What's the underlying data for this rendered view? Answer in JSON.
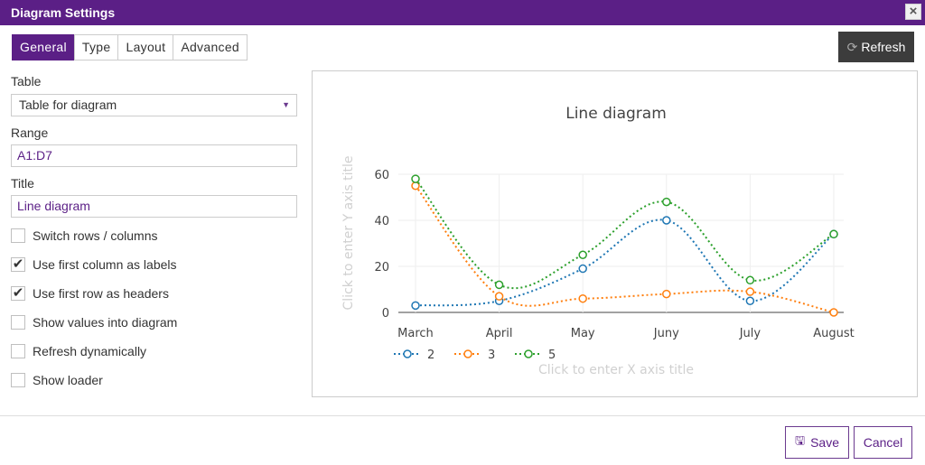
{
  "window": {
    "title": "Diagram Settings",
    "close_icon": "close-icon"
  },
  "tabs": [
    {
      "label": "General",
      "active": true
    },
    {
      "label": "Type",
      "active": false
    },
    {
      "label": "Layout",
      "active": false
    },
    {
      "label": "Advanced",
      "active": false
    }
  ],
  "toolbar": {
    "refresh_label": "Refresh",
    "refresh_icon": "refresh-icon"
  },
  "form": {
    "table_label": "Table",
    "table_value": "Table for diagram",
    "range_label": "Range",
    "range_value": "A1:D7",
    "title_label": "Title",
    "title_value": "Line diagram",
    "checkboxes": [
      {
        "label": "Switch rows / columns",
        "checked": false
      },
      {
        "label": "Use first column as labels",
        "checked": true
      },
      {
        "label": "Use first row as headers",
        "checked": true
      },
      {
        "label": "Show values into diagram",
        "checked": false
      },
      {
        "label": "Refresh dynamically",
        "checked": false
      },
      {
        "label": "Show loader",
        "checked": false
      }
    ]
  },
  "chart_data": {
    "type": "line",
    "title": "Line diagram",
    "xlabel": "Click to enter X axis title",
    "ylabel": "Click to enter Y axis title",
    "categories": [
      "March",
      "April",
      "May",
      "Juny",
      "July",
      "August"
    ],
    "ylim": [
      0,
      60
    ],
    "yticks": [
      0,
      20,
      40,
      60
    ],
    "grid": true,
    "legend": "bottom-left",
    "series": [
      {
        "name": "2",
        "color": "#1f77b4",
        "values": [
          3,
          5,
          19,
          40,
          5,
          34
        ]
      },
      {
        "name": "3",
        "color": "#ff7f0e",
        "values": [
          55,
          7,
          6,
          8,
          9,
          0
        ]
      },
      {
        "name": "5",
        "color": "#2ca02c",
        "values": [
          58,
          12,
          25,
          48,
          14,
          34
        ]
      }
    ]
  },
  "footer": {
    "save_label": "Save",
    "save_icon": "save-icon",
    "cancel_label": "Cancel"
  },
  "colors": {
    "brand": "#5b1f86",
    "refresh_bg": "#3c3c3c"
  }
}
